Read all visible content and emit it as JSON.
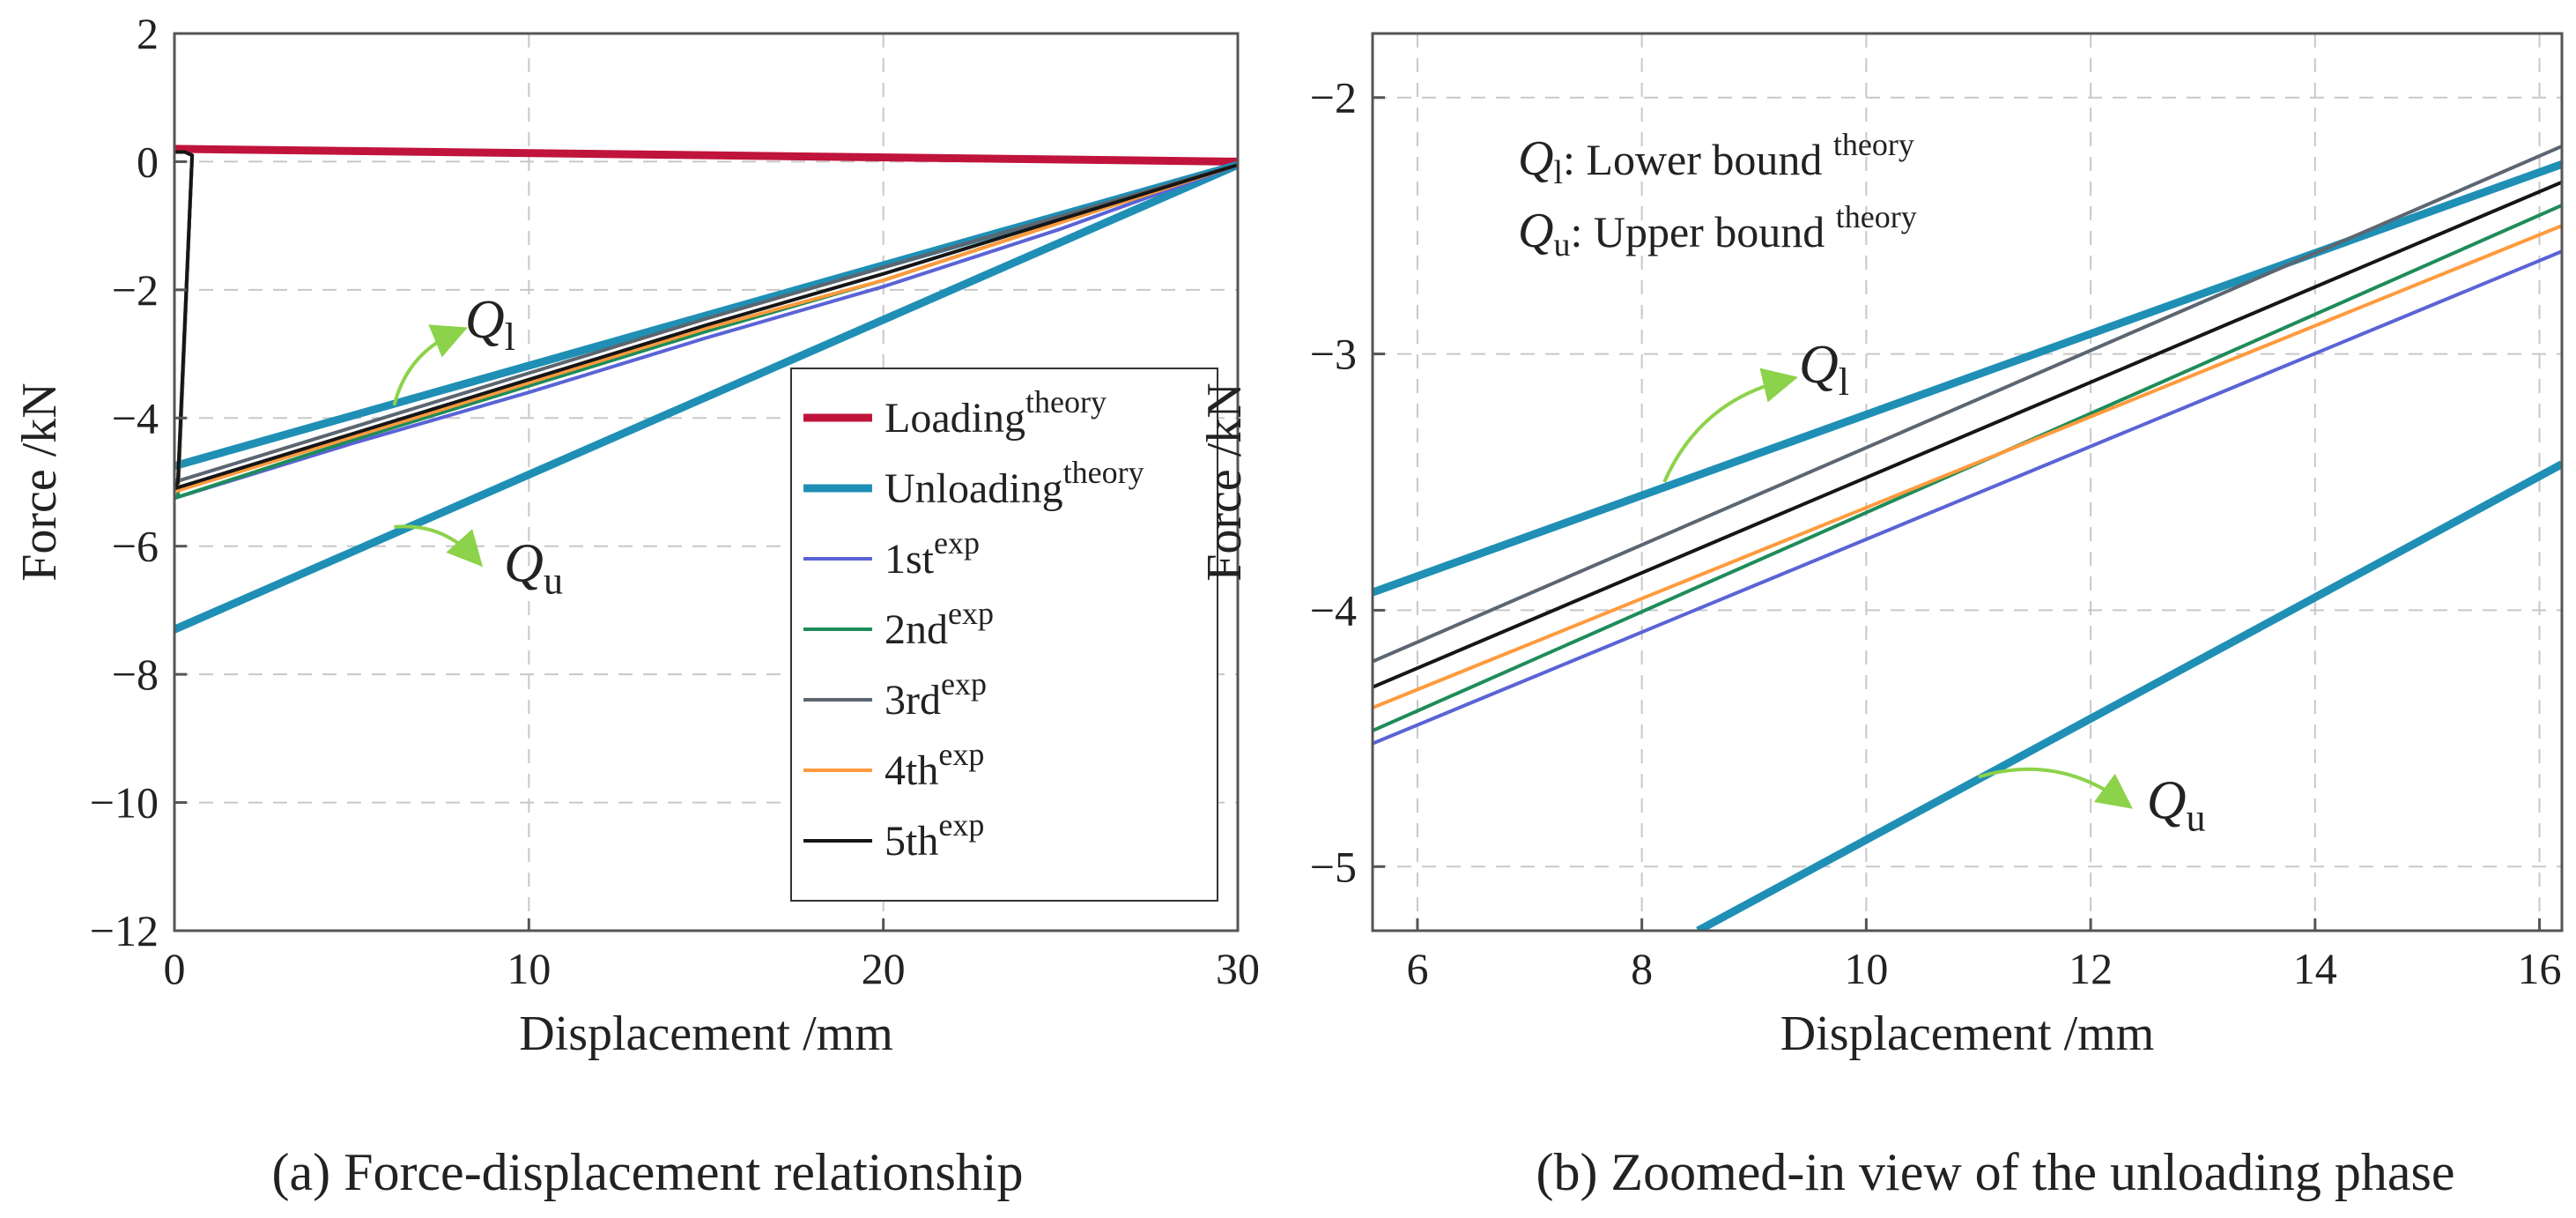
{
  "captions": {
    "a": "(a) Force-displacement relationship",
    "b": "(b) Zoomed-in view of the unloading phase"
  },
  "colors": {
    "loading_theory": "#c0143c",
    "unloading_theory": "#1f8fb5",
    "exp1": "#5a63d6",
    "exp2": "#1e8c5a",
    "exp3": "#5c6670",
    "exp4": "#ff9a3c",
    "exp5": "#161616",
    "arrow": "#8cd24a",
    "grid": "#c8c8c8",
    "axis": "#555555"
  },
  "chart_data": [
    {
      "id": "a",
      "type": "line",
      "title": "",
      "xlabel": "Displacement /mm",
      "ylabel": "Force /kN",
      "xlim": [
        0,
        30
      ],
      "ylim": [
        -12,
        2
      ],
      "xticks": [
        0,
        10,
        20,
        30
      ],
      "yticks": [
        2,
        0,
        -2,
        -4,
        -6,
        -8,
        -10,
        -12
      ],
      "grid": true,
      "legend_position": "bottom-right",
      "legend": [
        {
          "base": "Loading",
          "sup": "theory",
          "series": "loading_theory"
        },
        {
          "base": "Unloading",
          "sup": "theory",
          "series": "unloading_theory"
        },
        {
          "base": "1st",
          "sup": "exp",
          "series": "exp1"
        },
        {
          "base": "2nd",
          "sup": "exp",
          "series": "exp2"
        },
        {
          "base": "3rd",
          "sup": "exp",
          "series": "exp3"
        },
        {
          "base": "4th",
          "sup": "exp",
          "series": "exp4"
        },
        {
          "base": "5th",
          "sup": "exp",
          "series": "exp5"
        }
      ],
      "series": [
        {
          "name": "Loading theory",
          "key": "loading_theory",
          "points": [
            [
              0,
              0.2
            ],
            [
              30,
              0.0
            ]
          ]
        },
        {
          "name": "Unloading theory (Q_l)",
          "key": "unloading_theory",
          "points": [
            [
              0,
              -4.75
            ],
            [
              30,
              -0.05
            ]
          ]
        },
        {
          "name": "Unloading theory (Q_u)",
          "key": "unloading_theory",
          "points": [
            [
              0,
              -7.3
            ],
            [
              30,
              -0.05
            ]
          ]
        },
        {
          "name": "1st exp",
          "key": "exp1",
          "points": [
            [
              0,
              0.15
            ],
            [
              0.3,
              0.15
            ],
            [
              0.5,
              0.1
            ],
            [
              0.1,
              -5.2
            ],
            [
              0,
              -5.25
            ],
            [
              5,
              -4.4
            ],
            [
              10,
              -3.6
            ],
            [
              15,
              -2.75
            ],
            [
              20,
              -1.95
            ],
            [
              25,
              -1.05
            ],
            [
              30,
              -0.05
            ]
          ]
        },
        {
          "name": "2nd exp",
          "key": "exp2",
          "points": [
            [
              0,
              0.15
            ],
            [
              0.3,
              0.15
            ],
            [
              0.5,
              0.1
            ],
            [
              0.1,
              -5.2
            ],
            [
              0,
              -5.25
            ],
            [
              5,
              -4.35
            ],
            [
              10,
              -3.5
            ],
            [
              15,
              -2.65
            ],
            [
              20,
              -1.85
            ],
            [
              25,
              -0.95
            ],
            [
              30,
              -0.05
            ]
          ]
        },
        {
          "name": "3rd exp",
          "key": "exp3",
          "points": [
            [
              0,
              0.15
            ],
            [
              0.3,
              0.15
            ],
            [
              0.5,
              0.1
            ],
            [
              0.1,
              -4.95
            ],
            [
              0,
              -5.0
            ],
            [
              5,
              -4.15
            ],
            [
              10,
              -3.3
            ],
            [
              15,
              -2.45
            ],
            [
              20,
              -1.65
            ],
            [
              25,
              -0.85
            ],
            [
              30,
              -0.05
            ]
          ]
        },
        {
          "name": "4th exp",
          "key": "exp4",
          "points": [
            [
              0,
              0.15
            ],
            [
              0.3,
              0.15
            ],
            [
              0.5,
              0.1
            ],
            [
              0.1,
              -5.1
            ],
            [
              0,
              -5.15
            ],
            [
              5,
              -4.3
            ],
            [
              10,
              -3.45
            ],
            [
              15,
              -2.6
            ],
            [
              20,
              -1.85
            ],
            [
              25,
              -0.95
            ],
            [
              30,
              -0.05
            ]
          ]
        },
        {
          "name": "5th exp",
          "key": "exp5",
          "points": [
            [
              0,
              0.15
            ],
            [
              0.3,
              0.15
            ],
            [
              0.5,
              0.1
            ],
            [
              0.1,
              -5.0
            ],
            [
              0,
              -5.1
            ],
            [
              5,
              -4.25
            ],
            [
              10,
              -3.4
            ],
            [
              15,
              -2.55
            ],
            [
              20,
              -1.75
            ],
            [
              25,
              -0.9
            ],
            [
              30,
              -0.05
            ]
          ]
        }
      ],
      "annotations": [
        {
          "symbol": "Q",
          "sub": "l",
          "from": [
            6.2,
            -3.8
          ],
          "to": [
            8,
            -2.65
          ],
          "text_at": [
            8.2,
            -2.5
          ]
        },
        {
          "symbol": "Q",
          "sub": "u",
          "from": [
            6.2,
            -5.7
          ],
          "to": [
            8.5,
            -6.2
          ],
          "text_at": [
            9.3,
            -6.3
          ]
        }
      ]
    },
    {
      "id": "b",
      "type": "line",
      "title": "",
      "xlabel": "Displacement /mm",
      "ylabel": "Force /kN",
      "xlim": [
        5.6,
        16.2
      ],
      "ylim": [
        -5.25,
        -1.75
      ],
      "xticks": [
        6,
        8,
        10,
        12,
        14,
        16
      ],
      "yticks": [
        -2,
        -3,
        -4,
        -5
      ],
      "grid": true,
      "series": [
        {
          "name": "Unloading theory (Q_l)",
          "key": "unloading_theory",
          "points": [
            [
              5.6,
              -3.93
            ],
            [
              16.2,
              -2.26
            ]
          ]
        },
        {
          "name": "Unloading theory (Q_u)",
          "key": "unloading_theory",
          "points": [
            [
              8.5,
              -5.25
            ],
            [
              16.2,
              -3.43
            ]
          ]
        },
        {
          "name": "1st exp",
          "key": "exp1",
          "points": [
            [
              5.6,
              -4.52
            ],
            [
              16.2,
              -2.6
            ]
          ]
        },
        {
          "name": "2nd exp",
          "key": "exp2",
          "points": [
            [
              5.6,
              -4.47
            ],
            [
              16.2,
              -2.42
            ]
          ]
        },
        {
          "name": "3rd exp",
          "key": "exp3",
          "points": [
            [
              5.6,
              -4.2
            ],
            [
              16.2,
              -2.19
            ]
          ]
        },
        {
          "name": "4th exp",
          "key": "exp4",
          "points": [
            [
              5.6,
              -4.38
            ],
            [
              16.2,
              -2.5
            ]
          ]
        },
        {
          "name": "5th exp",
          "key": "exp5",
          "points": [
            [
              5.6,
              -4.3
            ],
            [
              16.2,
              -2.33
            ]
          ]
        }
      ],
      "notes": [
        {
          "symbol": "Q",
          "sub": "l",
          "text": ": Lower bound ",
          "sup": "theory"
        },
        {
          "symbol": "Q",
          "sub": "u",
          "text": ": Upper bound ",
          "sup": "theory"
        }
      ],
      "annotations": [
        {
          "symbol": "Q",
          "sub": "l",
          "from": [
            8.2,
            -3.5
          ],
          "to": [
            9.3,
            -3.1
          ],
          "text_at": [
            9.4,
            -3.05
          ]
        },
        {
          "symbol": "Q",
          "sub": "u",
          "from": [
            11,
            -4.65
          ],
          "to": [
            12.3,
            -4.75
          ],
          "text_at": [
            12.5,
            -4.75
          ]
        }
      ]
    }
  ]
}
